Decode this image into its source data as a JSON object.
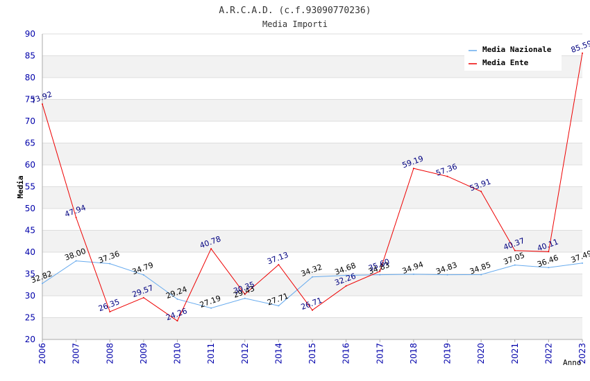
{
  "chart_data": {
    "type": "line",
    "title": "A.R.C.A.D. (c.f.93090770236)",
    "subtitle": "Media Importi",
    "xlabel": "Anno",
    "ylabel": "Media",
    "ylim": [
      20,
      90
    ],
    "yticks": [
      "20",
      "25",
      "30",
      "35",
      "40",
      "45",
      "50",
      "55",
      "60",
      "65",
      "70",
      "75",
      "80",
      "85",
      "90"
    ],
    "categories": [
      "2006",
      "2007",
      "2008",
      "2009",
      "2010",
      "2011",
      "2012",
      "2014",
      "2015",
      "2016",
      "2017",
      "2018",
      "2019",
      "2020",
      "2021",
      "2022",
      "2023"
    ],
    "grid": true,
    "legend_position": "top-right",
    "series": [
      {
        "name": "Media Nazionale",
        "color": "#66aaee",
        "label_color": "#000000",
        "values": [
          32.82,
          38.0,
          37.36,
          34.79,
          29.24,
          27.19,
          29.43,
          27.71,
          34.32,
          34.68,
          34.83,
          34.94,
          34.83,
          34.85,
          37.05,
          36.46,
          37.49
        ],
        "labels": [
          "32.82",
          "38.00",
          "37.36",
          "34.79",
          "29.24",
          "27.19",
          "29.43",
          "27.71",
          "34.32",
          "34.68",
          "34.83",
          "34.94",
          "34.83",
          "34.85",
          "37.05",
          "36.46",
          "37.49"
        ]
      },
      {
        "name": "Media Ente",
        "color": "#ee0000",
        "label_color": "#000080",
        "values": [
          73.92,
          47.94,
          26.35,
          29.57,
          24.26,
          40.78,
          30.35,
          37.13,
          26.71,
          32.26,
          35.6,
          59.19,
          57.36,
          53.91,
          40.37,
          40.11,
          85.59
        ],
        "labels": [
          "73.92",
          "47.94",
          "26.35",
          "29.57",
          "24.26",
          "40.78",
          "30.35",
          "37.13",
          "26.71",
          "32.26",
          "35.60",
          "59.19",
          "57.36",
          "53.91",
          "40.37",
          "40.11",
          "85.59"
        ]
      }
    ]
  },
  "colors": {
    "axis_text": "#0000aa",
    "band": "#f2f2f2",
    "grid": "#dddddd",
    "axis": "#aaaaaa"
  }
}
